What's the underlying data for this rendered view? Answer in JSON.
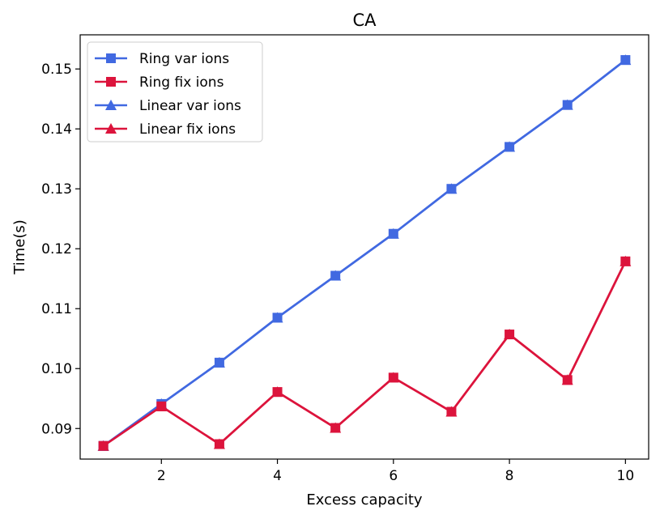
{
  "chart_data": {
    "type": "line",
    "title": "CA",
    "xlabel": "Excess capacity",
    "ylabel": "Time(s)",
    "xlim": [
      0.6,
      10.4
    ],
    "ylim": [
      0.0849,
      0.1557
    ],
    "xticks": [
      2,
      4,
      6,
      8,
      10
    ],
    "xtick_labels": [
      "2",
      "4",
      "6",
      "8",
      "10"
    ],
    "yticks": [
      0.09,
      0.1,
      0.11,
      0.12,
      0.13,
      0.14,
      0.15
    ],
    "ytick_labels": [
      "0.09",
      "0.10",
      "0.11",
      "0.12",
      "0.13",
      "0.14",
      "0.15"
    ],
    "grid": false,
    "legend_position": "top-left",
    "x": [
      1,
      2,
      3,
      4,
      5,
      6,
      7,
      8,
      9,
      10
    ],
    "series": [
      {
        "name": "Ring var ions",
        "marker": "square",
        "color": "#4169E1",
        "values": [
          0.0871,
          0.0941,
          0.101,
          0.1085,
          0.1155,
          0.1225,
          0.13,
          0.137,
          0.144,
          0.1515
        ]
      },
      {
        "name": "Ring fix ions",
        "marker": "square",
        "color": "#DC143C",
        "values": [
          0.0871,
          0.0937,
          0.0874,
          0.0961,
          0.0901,
          0.0985,
          0.0928,
          0.1057,
          0.0981,
          0.1179
        ]
      },
      {
        "name": "Linear var ions",
        "marker": "triangle",
        "color": "#4169E1",
        "values": [
          0.0871,
          0.0941,
          0.101,
          0.1085,
          0.1155,
          0.1225,
          0.13,
          0.137,
          0.144,
          0.1515
        ]
      },
      {
        "name": "Linear fix ions",
        "marker": "triangle",
        "color": "#DC143C",
        "values": [
          0.0871,
          0.0937,
          0.0874,
          0.0961,
          0.0901,
          0.0985,
          0.0928,
          0.1057,
          0.0981,
          0.1179
        ]
      }
    ]
  }
}
